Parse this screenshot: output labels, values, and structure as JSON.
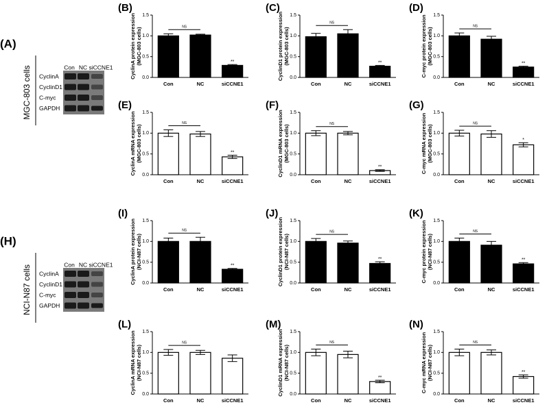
{
  "blots": [
    {
      "panel": "(A)",
      "cell_line": "MGC-803 cells",
      "lanes": [
        "Con",
        "NC",
        "siCCNE1"
      ],
      "proteins": [
        "CyclinA",
        "CyclinD1",
        "C-myc",
        "GAPDH"
      ]
    },
    {
      "panel": "(H)",
      "cell_line": "NCI-N87 cells",
      "lanes": [
        "Con",
        "NC",
        "siCCNE1"
      ],
      "proteins": [
        "CyclinA",
        "CyclinD1",
        "C-myc",
        "GAPDH"
      ]
    }
  ],
  "chart_data": [
    {
      "type": "bar",
      "panel": "(B)",
      "ylabel": [
        "CyclinA protein expression",
        "(MGC-803 cells)"
      ],
      "categories": [
        "Con",
        "NC",
        "siCCNE1"
      ],
      "values": [
        1.0,
        1.02,
        0.29
      ],
      "errors": [
        0.05,
        0.02,
        0.02
      ],
      "color": "#000000",
      "bracket_label": "NS",
      "significance": [
        null,
        null,
        "**"
      ],
      "ylim": [
        0,
        1.5
      ],
      "yticks": [
        {
          "value": 0,
          "label": "0.0"
        },
        0.5,
        {
          "value": 1,
          "label": "1.0"
        },
        1.5
      ]
    },
    {
      "type": "bar",
      "panel": "(C)",
      "ylabel": [
        "CyclinD1 protein expression",
        "(MGC-803 cells)"
      ],
      "categories": [
        "Con",
        "NC",
        "siCCNE1"
      ],
      "values": [
        0.98,
        1.05,
        0.27
      ],
      "errors": [
        0.08,
        0.1,
        0.02
      ],
      "color": "#000000",
      "bracket_label": "NS",
      "significance": [
        null,
        null,
        "**"
      ],
      "ylim": [
        0,
        1.5
      ],
      "yticks": [
        {
          "value": 0,
          "label": "0.0"
        },
        0.5,
        {
          "value": 1,
          "label": "1.0"
        },
        1.5
      ]
    },
    {
      "type": "bar",
      "panel": "(D)",
      "ylabel": [
        "C-myc protein expression",
        "(MGC-803 cells)"
      ],
      "categories": [
        "Con",
        "NC",
        "siCCNE1"
      ],
      "values": [
        1.0,
        0.92,
        0.25
      ],
      "errors": [
        0.07,
        0.07,
        0.02
      ],
      "color": "#000000",
      "bracket_label": "NS",
      "significance": [
        null,
        null,
        "**"
      ],
      "ylim": [
        0,
        1.5
      ],
      "yticks": [
        {
          "value": 0,
          "label": "0.0"
        },
        0.5,
        {
          "value": 1,
          "label": "1.0"
        },
        1.5
      ]
    },
    {
      "type": "bar",
      "panel": "(E)",
      "ylabel": [
        "CyclinA mRNA expression",
        "(MGC-803 cells)"
      ],
      "categories": [
        "Con",
        "NC",
        "siCCNE1"
      ],
      "values": [
        1.0,
        0.98,
        0.43
      ],
      "errors": [
        0.08,
        0.06,
        0.04
      ],
      "color": "#ffffff",
      "bracket_label": "NS",
      "significance": [
        null,
        null,
        "**"
      ],
      "ylim": [
        0,
        1.5
      ],
      "yticks": [
        {
          "value": 0,
          "label": "0.0"
        },
        0.5,
        {
          "value": 1,
          "label": "1.0"
        },
        1.5
      ]
    },
    {
      "type": "bar",
      "panel": "(F)",
      "ylabel": [
        "CyclinD1 mRNA expression",
        "(MGC-803 cells)"
      ],
      "categories": [
        "Con",
        "NC",
        "siCCNE1"
      ],
      "values": [
        1.0,
        1.0,
        0.1
      ],
      "errors": [
        0.06,
        0.04,
        0.02
      ],
      "color": "#ffffff",
      "bracket_label": "NS",
      "significance": [
        null,
        null,
        "**"
      ],
      "ylim": [
        0,
        1.5
      ],
      "yticks": [
        {
          "value": 0,
          "label": "0.0"
        },
        0.5,
        {
          "value": 1,
          "label": "1.0"
        },
        1.5
      ]
    },
    {
      "type": "bar",
      "panel": "(G)",
      "ylabel": [
        "C-myc mRNA expression",
        "(MGC-803 cells)"
      ],
      "categories": [
        "Con",
        "NC",
        "siCCNE1"
      ],
      "values": [
        1.0,
        0.98,
        0.72
      ],
      "errors": [
        0.07,
        0.08,
        0.05
      ],
      "color": "#ffffff",
      "bracket_label": "NS",
      "significance": [
        null,
        null,
        "*"
      ],
      "ylim": [
        0,
        1.5
      ],
      "yticks": [
        {
          "value": 0,
          "label": "0.0"
        },
        0.5,
        {
          "value": 1,
          "label": "1.0"
        },
        1.5
      ]
    },
    {
      "type": "bar",
      "panel": "(I)",
      "ylabel": [
        "CyclinA protein expression",
        "(NCI-N87 cells)"
      ],
      "categories": [
        "Con",
        "NC",
        "siCCNE1"
      ],
      "values": [
        1.0,
        1.0,
        0.33
      ],
      "errors": [
        0.08,
        0.1,
        0.02
      ],
      "color": "#000000",
      "bracket_label": "NS",
      "significance": [
        null,
        null,
        "**"
      ],
      "ylim": [
        0,
        1.5
      ],
      "yticks": [
        {
          "value": 0,
          "label": "0.0"
        },
        0.5,
        {
          "value": 1,
          "label": "1.0"
        },
        1.5
      ]
    },
    {
      "type": "bar",
      "panel": "(J)",
      "ylabel": [
        "CyclinD1 protein expression",
        "(NCI-N87 cells)"
      ],
      "categories": [
        "Con",
        "NC",
        "siCCNE1"
      ],
      "values": [
        1.0,
        0.96,
        0.47
      ],
      "errors": [
        0.07,
        0.05,
        0.04
      ],
      "color": "#000000",
      "bracket_label": "NS",
      "significance": [
        null,
        null,
        "**"
      ],
      "ylim": [
        0,
        1.5
      ],
      "yticks": [
        {
          "value": 0,
          "label": "0.0"
        },
        0.5,
        {
          "value": 1,
          "label": "1.0"
        },
        1.5
      ]
    },
    {
      "type": "bar",
      "panel": "(K)",
      "ylabel": [
        "C-myc protein expression",
        "(NCI-N87 cells)"
      ],
      "categories": [
        "Con",
        "NC",
        "siCCNE1"
      ],
      "values": [
        1.0,
        0.91,
        0.46
      ],
      "errors": [
        0.08,
        0.09,
        0.03
      ],
      "color": "#000000",
      "bracket_label": "NS",
      "significance": [
        null,
        null,
        "**"
      ],
      "ylim": [
        0,
        1.5
      ],
      "yticks": [
        {
          "value": 0,
          "label": "0.0"
        },
        0.5,
        {
          "value": 1,
          "label": "1.0"
        },
        1.5
      ]
    },
    {
      "type": "bar",
      "panel": "(L)",
      "ylabel": [
        "CyclinA mRNA expression",
        "(NCI-N87 cells)"
      ],
      "categories": [
        "Con",
        "NC",
        "siCCNE1"
      ],
      "values": [
        1.0,
        1.0,
        0.86
      ],
      "errors": [
        0.07,
        0.05,
        0.08
      ],
      "color": "#ffffff",
      "bracket_label": "NS",
      "significance": [
        null,
        null,
        null
      ],
      "ylim": [
        0,
        1.5
      ],
      "yticks": [
        {
          "value": 0,
          "label": "0.0"
        },
        0.5,
        {
          "value": 1,
          "label": "1.0"
        },
        1.5
      ]
    },
    {
      "type": "bar",
      "panel": "(M)",
      "ylabel": [
        "CyclinD1 mRNA expression",
        "(NCI-N87 cells)"
      ],
      "categories": [
        "Con",
        "NC",
        "siCCNE1"
      ],
      "values": [
        1.0,
        0.95,
        0.3
      ],
      "errors": [
        0.08,
        0.08,
        0.03
      ],
      "color": "#ffffff",
      "bracket_label": "NS",
      "significance": [
        null,
        null,
        "**"
      ],
      "ylim": [
        0,
        1.5
      ],
      "yticks": [
        {
          "value": 0,
          "label": "0.0"
        },
        0.5,
        {
          "value": 1,
          "label": "1.0"
        },
        1.5
      ]
    },
    {
      "type": "bar",
      "panel": "(N)",
      "ylabel": [
        "C-myc mRNA expression",
        "(NCI-N87 cells)"
      ],
      "categories": [
        "Con",
        "NC",
        "siCCNE1"
      ],
      "values": [
        1.0,
        1.0,
        0.42
      ],
      "errors": [
        0.08,
        0.06,
        0.04
      ],
      "color": "#ffffff",
      "bracket_label": "NS",
      "significance": [
        null,
        null,
        "**"
      ],
      "ylim": [
        0,
        1.5
      ],
      "yticks": [
        {
          "value": 0,
          "label": "0.0"
        },
        0.5,
        {
          "value": 1,
          "label": "1.0"
        },
        1.5
      ]
    }
  ]
}
